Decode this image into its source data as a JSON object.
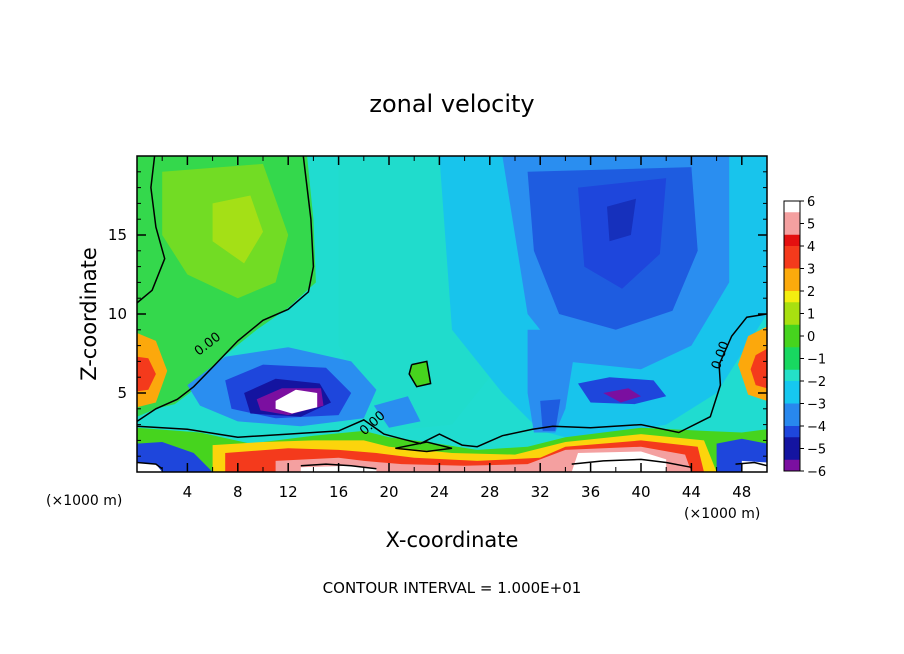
{
  "chart_data": {
    "type": "heatmap",
    "title": "zonal velocity",
    "xlabel": "X-coordinate",
    "ylabel": "Z-coordinate",
    "x_unit": "(×1000 m)",
    "y_unit": "(×1000 m)",
    "footer": "CONTOUR INTERVAL = 1.000E+01",
    "xlim": [
      0,
      50
    ],
    "ylim": [
      0,
      20
    ],
    "x_ticks": [
      4,
      8,
      12,
      16,
      20,
      24,
      28,
      32,
      36,
      40,
      44,
      48
    ],
    "y_ticks": [
      5,
      10,
      15
    ],
    "contour_labels": [
      "0.00",
      "0.00",
      "0.00"
    ],
    "colorbar": {
      "min": -6,
      "max": 6,
      "ticks": [
        6,
        5,
        4,
        3,
        2,
        1,
        0,
        -1,
        -2,
        -3,
        -4,
        -5,
        -6
      ],
      "tick_labels": [
        "6",
        "5",
        "4",
        "3",
        "2",
        "1",
        "0",
        "−1",
        "−2",
        "−3",
        "−4",
        "−5",
        "−6"
      ]
    },
    "features": [
      {
        "x": 39,
        "z": 15.5,
        "value": -4.5
      },
      {
        "x": 36,
        "z": 11,
        "value": -3.5
      },
      {
        "x": 28,
        "z": 14,
        "value": -2.5
      },
      {
        "x": 33,
        "z": 4,
        "value": -3.5
      },
      {
        "x": 8,
        "z": 15,
        "value": 1.2
      },
      {
        "x": 10,
        "z": 10,
        "value": 0.5
      },
      {
        "x": 13,
        "z": 4.3,
        "value": -6
      },
      {
        "x": 38.5,
        "z": 4.8,
        "value": -5
      },
      {
        "x": 0.5,
        "z": 6.3,
        "value": 4
      },
      {
        "x": 49.5,
        "z": 6.6,
        "value": 4
      },
      {
        "x": 37,
        "z": 1.2,
        "value": 6
      },
      {
        "x": 15,
        "z": 0.8,
        "value": 5
      },
      {
        "x": 24,
        "z": 0.7,
        "value": 4
      },
      {
        "x": 22,
        "z": 6.3,
        "value": 1
      },
      {
        "x": 20,
        "z": 3.6,
        "value": -2.5
      },
      {
        "x": 3,
        "z": 0.9,
        "value": -5
      },
      {
        "x": 48,
        "z": 0.8,
        "value": -5
      }
    ],
    "colors": {
      "palette": [
        "#7b0fa0",
        "#1414a0",
        "#1e46dc",
        "#2888ee",
        "#16c8f0",
        "#24e0c8",
        "#18d860",
        "#46d41e",
        "#a8e010",
        "#f4ee10",
        "#fcaa0c",
        "#f43a1c",
        "#e41010",
        "#f4a0a0",
        "#ffffff"
      ]
    }
  }
}
